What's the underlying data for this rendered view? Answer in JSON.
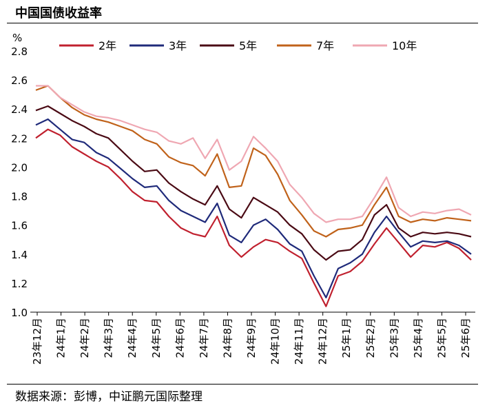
{
  "title": "中国国债收益率",
  "source": "数据来源：彭博，中证鹏元国际整理",
  "chart_data": {
    "type": "line",
    "ylabel": "%",
    "ylim": [
      1.0,
      2.8
    ],
    "yticks": [
      "1.0",
      "1.2",
      "1.4",
      "1.6",
      "1.8",
      "2.0",
      "2.2",
      "2.4",
      "2.6",
      "2.8"
    ],
    "xticks": [
      "23年12月",
      "24年1月",
      "24年2月",
      "24年3月",
      "24年4月",
      "24年5月",
      "24年6月",
      "24年7月",
      "24年8月",
      "24年9月",
      "24年10月",
      "24年11月",
      "24年12月",
      "25年1月",
      "25年2月",
      "25年3月",
      "25年4月",
      "25年5月",
      "25年6月"
    ],
    "legend_position": "top",
    "grid": false,
    "series": [
      {
        "name": "2年",
        "color": "#C0202E",
        "values": [
          2.2,
          2.26,
          2.22,
          2.14,
          2.09,
          2.04,
          2.0,
          1.92,
          1.83,
          1.77,
          1.76,
          1.66,
          1.58,
          1.54,
          1.52,
          1.66,
          1.46,
          1.38,
          1.45,
          1.5,
          1.48,
          1.42,
          1.37,
          1.2,
          1.04,
          1.25,
          1.28,
          1.35,
          1.47,
          1.58,
          1.48,
          1.38,
          1.46,
          1.45,
          1.48,
          1.44,
          1.36
        ]
      },
      {
        "name": "3年",
        "color": "#1F2A7A",
        "values": [
          2.29,
          2.33,
          2.26,
          2.19,
          2.17,
          2.1,
          2.06,
          1.99,
          1.92,
          1.86,
          1.87,
          1.77,
          1.7,
          1.66,
          1.62,
          1.75,
          1.53,
          1.48,
          1.6,
          1.64,
          1.57,
          1.47,
          1.42,
          1.25,
          1.1,
          1.3,
          1.34,
          1.4,
          1.55,
          1.66,
          1.55,
          1.45,
          1.49,
          1.48,
          1.49,
          1.46,
          1.4
        ]
      },
      {
        "name": "5年",
        "color": "#4A0A14",
        "values": [
          2.39,
          2.42,
          2.37,
          2.32,
          2.28,
          2.23,
          2.2,
          2.12,
          2.04,
          1.97,
          1.98,
          1.89,
          1.83,
          1.78,
          1.74,
          1.87,
          1.71,
          1.65,
          1.79,
          1.74,
          1.69,
          1.6,
          1.54,
          1.43,
          1.36,
          1.42,
          1.43,
          1.5,
          1.67,
          1.74,
          1.58,
          1.52,
          1.55,
          1.54,
          1.55,
          1.54,
          1.52
        ]
      },
      {
        "name": "7年",
        "color": "#C0621A",
        "values": [
          2.53,
          2.56,
          2.48,
          2.41,
          2.36,
          2.33,
          2.31,
          2.28,
          2.25,
          2.19,
          2.16,
          2.07,
          2.03,
          2.01,
          1.94,
          2.09,
          1.86,
          1.87,
          2.13,
          2.08,
          1.95,
          1.77,
          1.67,
          1.56,
          1.52,
          1.57,
          1.58,
          1.6,
          1.74,
          1.86,
          1.66,
          1.62,
          1.64,
          1.63,
          1.65,
          1.64,
          1.63
        ]
      },
      {
        "name": "10年",
        "color": "#EFA7B2",
        "values": [
          2.56,
          2.56,
          2.48,
          2.43,
          2.38,
          2.35,
          2.34,
          2.32,
          2.29,
          2.26,
          2.24,
          2.18,
          2.16,
          2.2,
          2.06,
          2.19,
          1.98,
          2.04,
          2.21,
          2.13,
          2.04,
          1.88,
          1.79,
          1.68,
          1.62,
          1.64,
          1.64,
          1.66,
          1.79,
          1.93,
          1.72,
          1.66,
          1.69,
          1.68,
          1.7,
          1.71,
          1.67
        ]
      }
    ]
  }
}
